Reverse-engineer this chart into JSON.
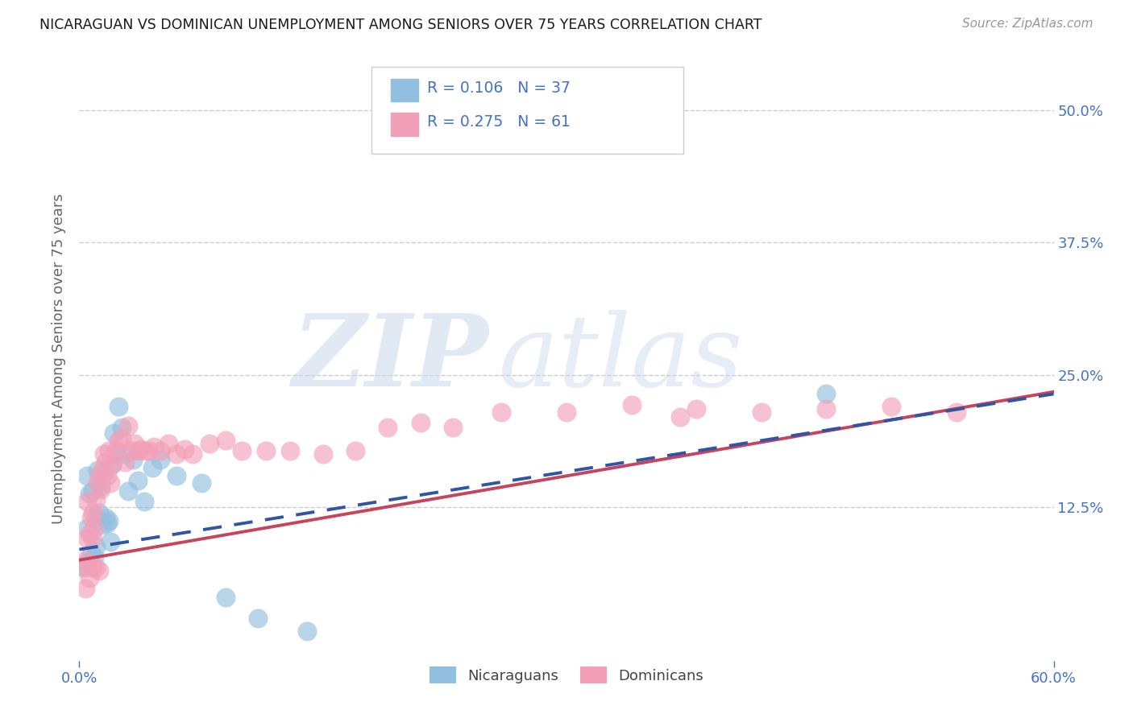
{
  "title": "NICARAGUAN VS DOMINICAN UNEMPLOYMENT AMONG SENIORS OVER 75 YEARS CORRELATION CHART",
  "source": "Source: ZipAtlas.com",
  "ylabel": "Unemployment Among Seniors over 75 years",
  "xlabel_nicaraguans": "Nicaraguans",
  "xlabel_dominicans": "Dominicans",
  "xlim": [
    0.0,
    0.6
  ],
  "ylim": [
    -0.02,
    0.55
  ],
  "R_nicaraguans": 0.106,
  "N_nicaraguans": 37,
  "R_dominicans": 0.275,
  "N_dominicans": 61,
  "color_nicaraguans": "#92BFE0",
  "color_dominicans": "#F2A0B8",
  "line_color_nicaraguans": "#3055A4",
  "line_color_dominicans": "#C8435C",
  "title_color": "#1a1a1a",
  "tick_label_color": "#4472C4",
  "watermark_zip": "ZIP",
  "watermark_atlas": "atlas",
  "background_color": "#FFFFFF",
  "nic_intercept": 0.085,
  "nic_slope": 0.245,
  "dom_intercept": 0.075,
  "dom_slope": 0.265,
  "nicaraguans_x": [
    0.003,
    0.004,
    0.005,
    0.005,
    0.006,
    0.007,
    0.008,
    0.009,
    0.01,
    0.01,
    0.011,
    0.012,
    0.013,
    0.014,
    0.015,
    0.016,
    0.017,
    0.018,
    0.019,
    0.02,
    0.021,
    0.022,
    0.024,
    0.026,
    0.028,
    0.03,
    0.033,
    0.036,
    0.04,
    0.045,
    0.05,
    0.06,
    0.075,
    0.09,
    0.11,
    0.14,
    0.46
  ],
  "nicaraguans_y": [
    0.068,
    0.072,
    0.155,
    0.105,
    0.138,
    0.082,
    0.14,
    0.078,
    0.115,
    0.088,
    0.16,
    0.12,
    0.145,
    0.108,
    0.158,
    0.115,
    0.11,
    0.112,
    0.092,
    0.165,
    0.195,
    0.175,
    0.22,
    0.2,
    0.175,
    0.14,
    0.17,
    0.15,
    0.13,
    0.162,
    0.17,
    0.155,
    0.148,
    0.04,
    0.02,
    0.008,
    0.232
  ],
  "dominicans_x": [
    0.003,
    0.004,
    0.005,
    0.005,
    0.006,
    0.007,
    0.008,
    0.008,
    0.009,
    0.01,
    0.011,
    0.012,
    0.013,
    0.014,
    0.015,
    0.016,
    0.017,
    0.018,
    0.019,
    0.02,
    0.022,
    0.024,
    0.026,
    0.028,
    0.03,
    0.032,
    0.034,
    0.036,
    0.038,
    0.04,
    0.043,
    0.046,
    0.05,
    0.055,
    0.06,
    0.065,
    0.07,
    0.08,
    0.09,
    0.1,
    0.115,
    0.13,
    0.15,
    0.17,
    0.19,
    0.21,
    0.23,
    0.26,
    0.3,
    0.34,
    0.38,
    0.42,
    0.46,
    0.5,
    0.54,
    0.004,
    0.006,
    0.008,
    0.01,
    0.012,
    0.37
  ],
  "dominicans_y": [
    0.068,
    0.075,
    0.095,
    0.13,
    0.1,
    0.115,
    0.12,
    0.095,
    0.105,
    0.132,
    0.148,
    0.155,
    0.142,
    0.16,
    0.175,
    0.168,
    0.155,
    0.178,
    0.148,
    0.165,
    0.178,
    0.188,
    0.19,
    0.168,
    0.202,
    0.178,
    0.185,
    0.178,
    0.18,
    0.178,
    0.178,
    0.182,
    0.178,
    0.185,
    0.175,
    0.18,
    0.175,
    0.185,
    0.188,
    0.178,
    0.178,
    0.178,
    0.175,
    0.178,
    0.2,
    0.205,
    0.2,
    0.215,
    0.215,
    0.222,
    0.218,
    0.215,
    0.218,
    0.22,
    0.215,
    0.048,
    0.058,
    0.068,
    0.068,
    0.065,
    0.21
  ]
}
